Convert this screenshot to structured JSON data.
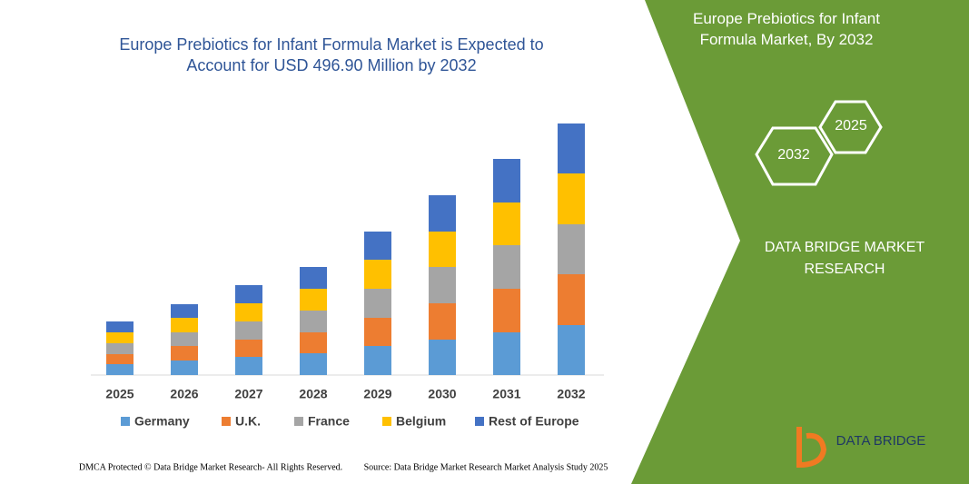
{
  "chart_data": {
    "type": "stacked-bar",
    "title": "Europe Prebiotics for Infant Formula Market is Expected to Account for USD 496.90 Million by 2032",
    "categories": [
      "2025",
      "2026",
      "2027",
      "2028",
      "2029",
      "2030",
      "2031",
      "2032"
    ],
    "series": [
      {
        "name": "Germany",
        "color": "#5b9bd5",
        "values": [
          12,
          16,
          20,
          24,
          32,
          39,
          47,
          55
        ]
      },
      {
        "name": "U.K.",
        "color": "#ed7d31",
        "values": [
          11,
          16,
          19,
          23,
          31,
          40,
          48,
          56
        ]
      },
      {
        "name": "France",
        "color": "#a5a5a5",
        "values": [
          12,
          15,
          20,
          24,
          32,
          40,
          48,
          55
        ]
      },
      {
        "name": "Belgium",
        "color": "#ffc000",
        "values": [
          12,
          16,
          20,
          24,
          32,
          39,
          47,
          56
        ]
      },
      {
        "name": "Rest of Europe",
        "color": "#4472c4",
        "values": [
          12,
          15,
          20,
          24,
          31,
          40,
          48,
          55
        ]
      }
    ],
    "ylim": [
      0,
      300
    ],
    "grid": false,
    "legend": "bottom"
  },
  "panel": {
    "title": "Europe Prebiotics for Infant Formula Market, By 2032",
    "hex_right": "2025",
    "hex_left": "2032",
    "brand": "DATA BRIDGE MARKET RESEARCH",
    "logo": "DATA BRIDGE"
  },
  "footer": {
    "left": "DMCA Protected © Data Bridge Market Research- All Rights Reserved.",
    "right": "Source: Data Bridge Market Research Market Analysis Study 2025"
  }
}
